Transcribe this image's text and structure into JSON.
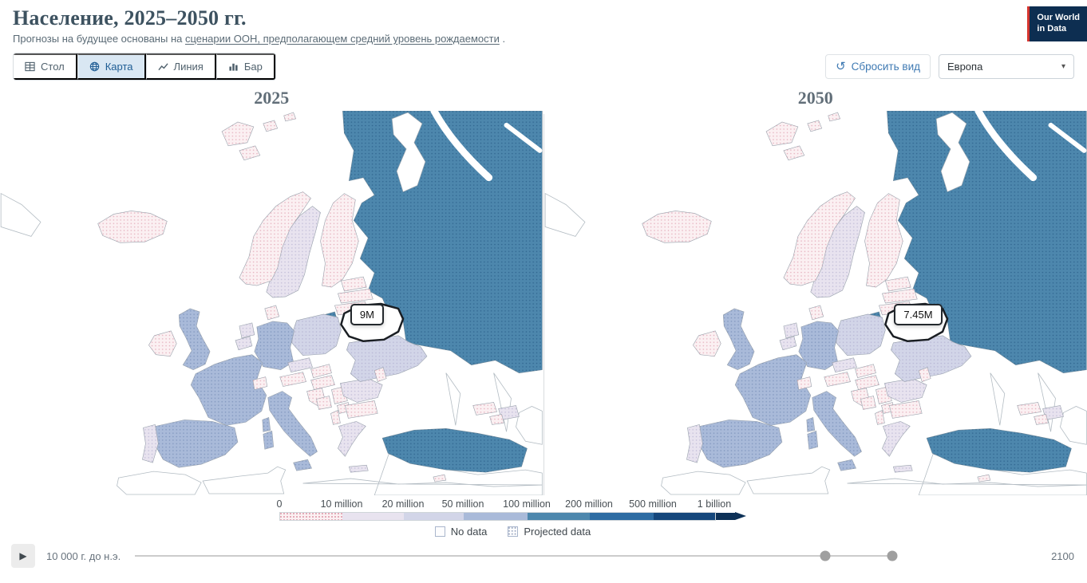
{
  "header": {
    "title": "Население, 2025–2050 гг.",
    "subtitle_prefix": "Прогнозы на будущее основаны на ",
    "subtitle_link": "сценарии ООН, предполагающем средний уровень рождаемости",
    "subtitle_suffix": " .",
    "logo_line1": "Our World",
    "logo_line2": "in Data"
  },
  "toolbar": {
    "tabs": [
      {
        "id": "table",
        "label": "Стол",
        "icon": "table-icon",
        "active": false
      },
      {
        "id": "map",
        "label": "Карта",
        "icon": "globe-icon",
        "active": true
      },
      {
        "id": "line",
        "label": "Линия",
        "icon": "line-chart-icon",
        "active": false
      },
      {
        "id": "bar",
        "label": "Бар",
        "icon": "bar-chart-icon",
        "active": false
      }
    ],
    "reset_label": "Сбросить вид",
    "region_value": "Европа"
  },
  "legend": {
    "tick_labels": [
      "0",
      "10 million",
      "20 million",
      "50 million",
      "100 million",
      "200 million",
      "500 million",
      "1 billion"
    ],
    "arrow_color": "#0d3157",
    "no_data_label": "No data",
    "projected_label": "Projected data"
  },
  "timeline": {
    "start_label": "10 000 г. до н.э.",
    "end_label": "2100"
  },
  "chart_data": {
    "type": "heatmap",
    "variant": "choropleth-map-comparison",
    "title": "Население, 2025–2050 гг.",
    "region": "Европа",
    "bins": [
      {
        "min_label": "0",
        "max_label": "10 million",
        "color": "#fbf0f2"
      },
      {
        "min_label": "10 million",
        "max_label": "20 million",
        "color": "#e8e3ef"
      },
      {
        "min_label": "20 million",
        "max_label": "50 million",
        "color": "#d2d5e8"
      },
      {
        "min_label": "50 million",
        "max_label": "100 million",
        "color": "#a9bad9"
      },
      {
        "min_label": "100 million",
        "max_label": "200 million",
        "color": "#4d87ad"
      },
      {
        "min_label": "200 million",
        "max_label": "500 million",
        "color": "#2e6ca3"
      },
      {
        "min_label": "500 million",
        "max_label": "1 billion",
        "color": "#15477c"
      }
    ],
    "maps": [
      {
        "year_label": "2025",
        "tooltip": "9M",
        "highlighted_country": "Belarus",
        "countries": {
          "iceland": 1,
          "svalbard": 1,
          "norway": 1,
          "sweden": 2,
          "finland": 1,
          "estonia": 1,
          "latvia": 1,
          "lithuania": 1,
          "kaliningrad": 5,
          "poland": 3,
          "germany": 4,
          "denmark": 1,
          "netherlands": 2,
          "belgium": 2,
          "uk": 4,
          "ireland": 1,
          "france": 4,
          "corsica": 4,
          "spain": 4,
          "portugal": 2,
          "italy": 4,
          "sicily": 4,
          "sardinia": 4,
          "switzerland": 1,
          "austria": 1,
          "czechia": 2,
          "slovakia": 1,
          "hungary": 1,
          "croatia": 1,
          "bosnia": 1,
          "serbia": 1,
          "albania": 1,
          "nmacedonia": 1,
          "bulgaria": 1,
          "romania": 2,
          "moldova": 1,
          "greece": 2,
          "crete": 2,
          "ukraine": 3,
          "turkey": 5,
          "cyprus": 1,
          "georgia": 1,
          "azerbaijan": 2,
          "armenia": 1,
          "russia": 5,
          "belarus": "H"
        }
      },
      {
        "year_label": "2050",
        "tooltip": "7.45M",
        "highlighted_country": "Belarus",
        "countries": {
          "iceland": 1,
          "svalbard": 1,
          "norway": 1,
          "sweden": 2,
          "finland": 1,
          "estonia": 1,
          "latvia": 1,
          "lithuania": 1,
          "kaliningrad": 5,
          "poland": 3,
          "germany": 4,
          "denmark": 1,
          "netherlands": 2,
          "belgium": 2,
          "uk": 4,
          "ireland": 1,
          "france": 4,
          "corsica": 4,
          "spain": 4,
          "portugal": 2,
          "italy": 4,
          "sicily": 4,
          "sardinia": 4,
          "switzerland": 1,
          "austria": 1,
          "czechia": 2,
          "slovakia": 1,
          "hungary": 1,
          "croatia": 1,
          "bosnia": 1,
          "serbia": 1,
          "albania": 1,
          "nmacedonia": 1,
          "bulgaria": 1,
          "romania": 2,
          "moldova": 1,
          "greece": 2,
          "crete": 2,
          "ukraine": 3,
          "turkey": 5,
          "cyprus": 1,
          "georgia": 1,
          "azerbaijan": 2,
          "armenia": 1,
          "russia": 5,
          "belarus": "H"
        }
      }
    ]
  }
}
